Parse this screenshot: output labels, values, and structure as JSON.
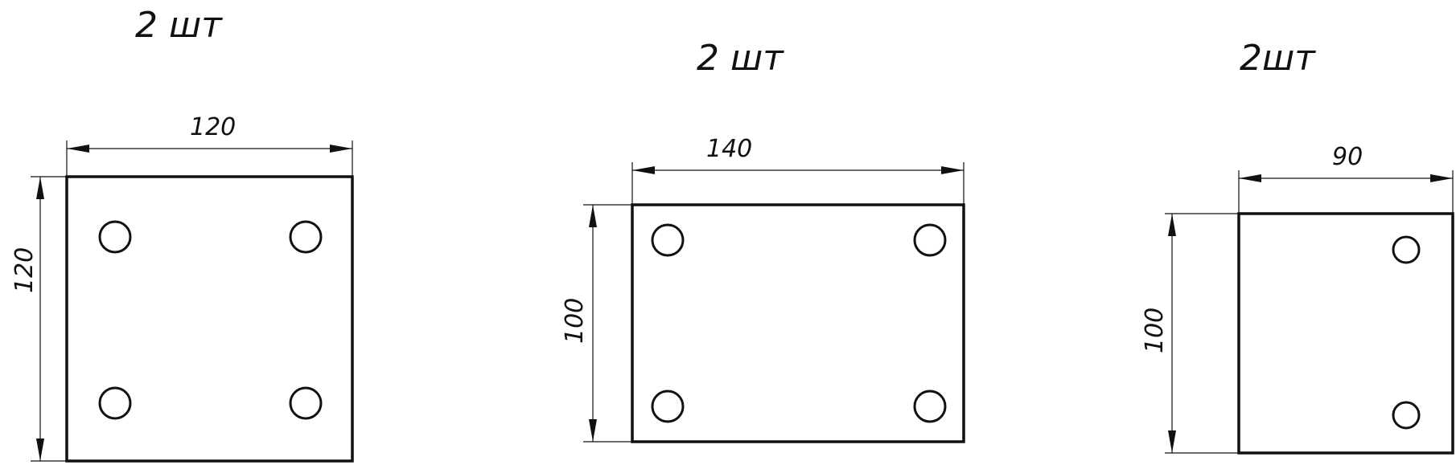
{
  "parts": [
    {
      "quantity": "2 шт",
      "width_label": "120",
      "height_label": "120",
      "width": 120,
      "height": 120,
      "holes": 4
    },
    {
      "quantity": "2 шт",
      "width_label": "140",
      "height_label": "100",
      "width": 140,
      "height": 100,
      "holes": 4
    },
    {
      "quantity": "2шт",
      "width_label": "90",
      "height_label": "100",
      "width": 90,
      "height": 100,
      "holes": 2
    }
  ]
}
